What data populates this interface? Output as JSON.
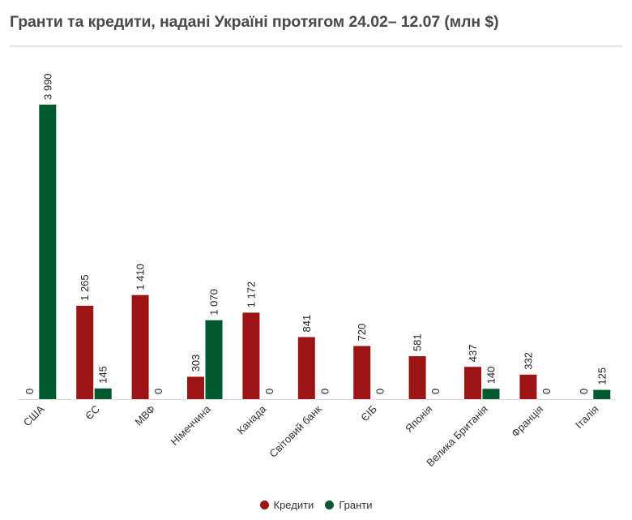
{
  "chart_data": {
    "type": "bar",
    "title": "Гранти та кредити, надані Україні протягом 24.02– 12.07 (млн $)",
    "xlabel": "",
    "ylabel": "",
    "ylim": [
      0,
      3990
    ],
    "grid": false,
    "legend_position": "bottom-center",
    "categories": [
      "США",
      "ЄС",
      "МВФ",
      "Німеччина",
      "Канада",
      "Світовий банк",
      "ЄІБ",
      "Японія",
      "Велика Британія",
      "Франція",
      "Італія"
    ],
    "series": [
      {
        "name": "Кредити",
        "color": "#9c1515",
        "values": [
          0,
          1265,
          1410,
          303,
          1172,
          841,
          720,
          581,
          437,
          332,
          0
        ]
      },
      {
        "name": "Гранти",
        "color": "#005a2f",
        "values": [
          3990,
          145,
          0,
          1070,
          0,
          0,
          0,
          0,
          140,
          0,
          125
        ]
      }
    ],
    "value_labels": [
      [
        "0",
        "1 265",
        "1 410",
        "303",
        "1 172",
        "841",
        "720",
        "581",
        "437",
        "332",
        "0"
      ],
      [
        "3 990",
        "145",
        "0",
        "1 070",
        "0",
        "0",
        "0",
        "0",
        "140",
        "0",
        "125"
      ]
    ]
  }
}
